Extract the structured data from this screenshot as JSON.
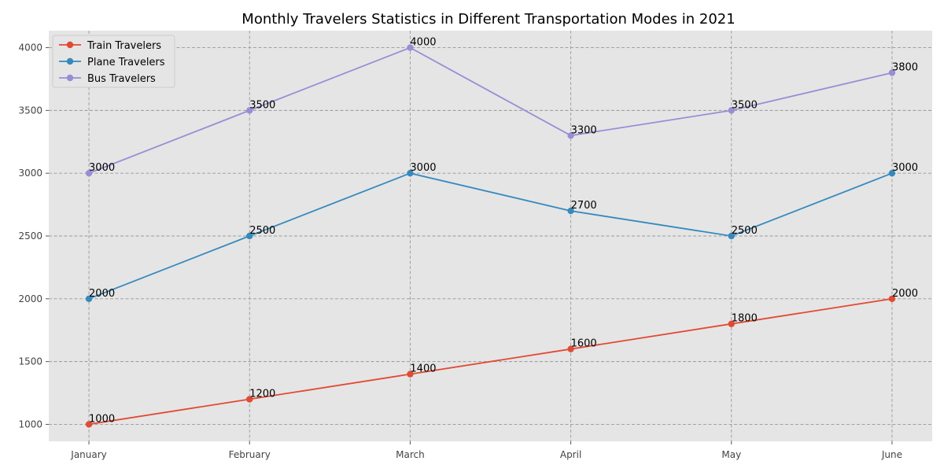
{
  "chart_data": {
    "type": "line",
    "title": "Monthly Travelers Statistics in Different Transportation Modes in 2021",
    "xlabel": "",
    "ylabel": "",
    "categories": [
      "January",
      "February",
      "March",
      "April",
      "May",
      "June"
    ],
    "series": [
      {
        "name": "Train Travelers",
        "color": "#e24a33",
        "values": [
          1000,
          1200,
          1400,
          1600,
          1800,
          2000
        ]
      },
      {
        "name": "Plane Travelers",
        "color": "#348abd",
        "values": [
          2000,
          2500,
          3000,
          2700,
          2500,
          3000
        ]
      },
      {
        "name": "Bus Travelers",
        "color": "#988ed5",
        "values": [
          3000,
          3500,
          4000,
          3300,
          3500,
          3800
        ]
      }
    ],
    "ylim": [
      865,
      4135
    ],
    "yticks": [
      1000,
      1500,
      2000,
      2500,
      3000,
      3500,
      4000
    ],
    "grid": true,
    "legend": "top-left",
    "background": "#e5e5e5",
    "grid_color": "#999999"
  }
}
